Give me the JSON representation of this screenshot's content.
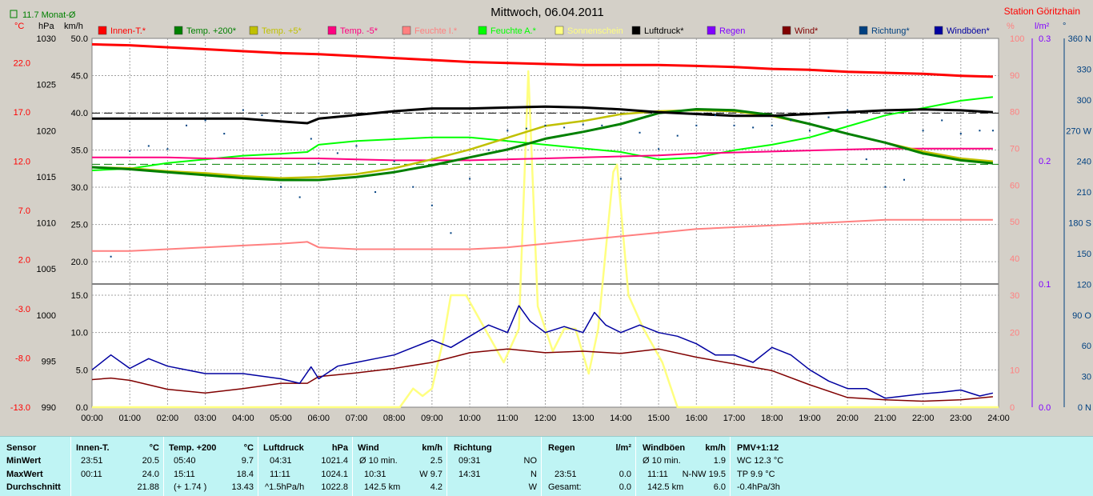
{
  "header": {
    "title": "Mittwoch, 06.04.2011",
    "station": "Station Göritzhain",
    "monthly_avg": "11.7 Monat-Ø",
    "unit_c": "°C",
    "unit_hpa": "hPa",
    "unit_kmh": "km/h",
    "unit_pct": "%",
    "unit_lm2": "l/m²",
    "unit_deg": "°"
  },
  "colors": {
    "innen": "#ff0000",
    "temp200": "#008000",
    "temp5": "#c0c000",
    "tempm5": "#ff0080",
    "feuchteI": "#ff8080",
    "feuchteA": "#00ff00",
    "sonne": "#ffff80",
    "luftdruck": "#000000",
    "regen": "#8000ff",
    "wind": "#800000",
    "richtung": "#004080",
    "windboeen": "#0000a0",
    "pct": "#ff8080",
    "rain_axis": "#8000ff",
    "dir_axis": "#004080"
  },
  "legend": [
    {
      "label": "Innen-T.*",
      "color": "#ff0000"
    },
    {
      "label": "Temp. +200*",
      "color": "#008000"
    },
    {
      "label": "Temp. +5*",
      "color": "#c0c000"
    },
    {
      "label": "Temp. -5*",
      "color": "#ff0080"
    },
    {
      "label": "Feuchte I.*",
      "color": "#ff8080"
    },
    {
      "label": "Feuchte A.*",
      "color": "#00ff00"
    },
    {
      "label": "Sonnenschein",
      "color": "#ffff80"
    },
    {
      "label": "Luftdruck*",
      "color": "#000000"
    },
    {
      "label": "Regen",
      "color": "#8000ff"
    },
    {
      "label": "Wind*",
      "color": "#800000"
    },
    {
      "label": "Richtung*",
      "color": "#004080"
    },
    {
      "label": "Windböen*",
      "color": "#0000a0"
    }
  ],
  "chart_data": {
    "type": "line",
    "title": "Mittwoch, 06.04.2011",
    "x_ticks": [
      "00:00",
      "01:00",
      "02:00",
      "03:00",
      "04:00",
      "05:00",
      "06:00",
      "07:00",
      "08:00",
      "09:00",
      "10:00",
      "11:00",
      "12:00",
      "13:00",
      "14:00",
      "15:00",
      "16:00",
      "17:00",
      "18:00",
      "19:00",
      "20:00",
      "21:00",
      "22:00",
      "23:00",
      "24:00"
    ],
    "axes": {
      "celsius": {
        "ticks": [
          "22.0",
          "17.0",
          "12.0",
          "7.0",
          "2.0",
          "-3.0",
          "-8.0",
          "-13.0"
        ],
        "range": [
          -13,
          24.5
        ]
      },
      "hpa": {
        "ticks": [
          "1030",
          "1025",
          "1020",
          "1015",
          "1010",
          "1005",
          "1000",
          "995",
          "990"
        ],
        "range": [
          990,
          1030
        ]
      },
      "kmh_upper": {
        "ticks": [
          "50.0",
          "45.0",
          "40.0",
          "35.0",
          "30.0",
          "25.0",
          "20.0"
        ],
        "range": [
          17,
          50
        ]
      },
      "kmh_lower": {
        "ticks": [
          "15.0",
          "10.0",
          "5.0",
          "0.0"
        ],
        "range": [
          0,
          16.5
        ]
      },
      "percent_upper": {
        "ticks": [
          "100",
          "90",
          "80",
          "70",
          "60",
          "50",
          "40"
        ],
        "range": [
          33,
          100
        ]
      },
      "percent_lower": {
        "ticks": [
          "30",
          "20",
          "10",
          "0"
        ],
        "range": [
          0,
          33
        ]
      },
      "rain": {
        "ticks": [
          "0.3",
          "0.2",
          "0.1",
          "0.0"
        ],
        "range": [
          0,
          0.3
        ]
      },
      "direction": {
        "ticks": [
          "360 N",
          "330",
          "300",
          "270 W",
          "240",
          "210",
          "180 S",
          "150",
          "120",
          "90 O",
          "60",
          "30",
          "0 N"
        ],
        "range": [
          0,
          360
        ]
      }
    },
    "reference_lines": {
      "luftdruck_dashed": 1021.9,
      "monthly_avg_c": 11.7
    },
    "series": [
      {
        "name": "Innen-T.*",
        "axis": "celsius",
        "x": [
          0,
          1,
          2,
          3,
          4,
          5,
          6,
          7,
          8,
          9,
          10,
          11,
          12,
          13,
          14,
          15,
          16,
          17,
          18,
          19,
          20,
          21,
          22,
          23,
          23.85
        ],
        "values": [
          23.9,
          23.8,
          23.6,
          23.4,
          23.2,
          23.0,
          22.9,
          22.7,
          22.5,
          22.3,
          22.1,
          22.0,
          21.9,
          21.8,
          21.8,
          21.8,
          21.7,
          21.6,
          21.4,
          21.3,
          21.1,
          21.0,
          20.9,
          20.7,
          20.6
        ]
      },
      {
        "name": "Temp. +200*",
        "axis": "celsius",
        "x": [
          0,
          1,
          2,
          3,
          4,
          5,
          6,
          7,
          8,
          9,
          10,
          11,
          12,
          13,
          14,
          15,
          16,
          17,
          18,
          19,
          20,
          21,
          22,
          23,
          23.85
        ],
        "values": [
          11.4,
          11.2,
          10.9,
          10.6,
          10.3,
          10.1,
          10.1,
          10.4,
          10.9,
          11.6,
          12.4,
          13.2,
          14.3,
          15.0,
          15.8,
          16.9,
          17.3,
          17.2,
          16.7,
          15.8,
          14.8,
          13.9,
          12.8,
          12.1,
          11.8
        ]
      },
      {
        "name": "Temp. +5*",
        "axis": "celsius",
        "x": [
          0,
          1,
          2,
          3,
          4,
          5,
          6,
          7,
          8,
          9,
          10,
          11,
          12,
          13,
          14,
          15,
          16,
          17,
          18,
          19,
          20,
          21,
          22,
          23,
          23.85
        ],
        "values": [
          11.4,
          11.3,
          11.0,
          10.8,
          10.5,
          10.3,
          10.4,
          10.7,
          11.3,
          12.2,
          13.2,
          14.4,
          15.6,
          16.1,
          16.8,
          17.1,
          17.2,
          17.1,
          16.6,
          15.8,
          14.8,
          13.9,
          13.0,
          12.3,
          12.0
        ]
      },
      {
        "name": "Temp. -5*",
        "axis": "celsius",
        "x": [
          0,
          1,
          2,
          3,
          4,
          5,
          6,
          7,
          8,
          9,
          10,
          11,
          12,
          13,
          14,
          15,
          16,
          17,
          18,
          19,
          20,
          21,
          22,
          23,
          23.85
        ],
        "values": [
          12.4,
          12.4,
          12.4,
          12.3,
          12.3,
          12.3,
          12.3,
          12.2,
          12.1,
          12.1,
          12.1,
          12.2,
          12.3,
          12.4,
          12.5,
          12.6,
          12.8,
          12.9,
          13.0,
          13.1,
          13.2,
          13.3,
          13.3,
          13.3,
          13.3
        ]
      },
      {
        "name": "Feuchte I.*",
        "axis": "percent_upper",
        "x": [
          0,
          1,
          2,
          3,
          4,
          5,
          5.7,
          6,
          7,
          8,
          9,
          10,
          11,
          12,
          13,
          14,
          15,
          16,
          17,
          18,
          19,
          20,
          21,
          22,
          23,
          23.85
        ],
        "values": [
          42,
          42,
          42.5,
          43,
          43.5,
          44,
          44.5,
          43,
          42.5,
          42.5,
          42.5,
          42.5,
          43,
          44,
          45,
          46,
          47,
          48,
          48.5,
          49,
          49.5,
          50,
          50.5,
          50.5,
          50.5,
          50.5
        ]
      },
      {
        "name": "Feuchte A.*",
        "axis": "percent_upper",
        "x": [
          0,
          1,
          2,
          3,
          4,
          5,
          5.7,
          6,
          7,
          8,
          9,
          10,
          11,
          12,
          13,
          14,
          15,
          16,
          17,
          18,
          19,
          20,
          21,
          22,
          23,
          23.85
        ],
        "values": [
          64,
          64.5,
          66,
          67,
          68,
          68.5,
          69,
          71,
          72,
          72.5,
          73,
          73,
          72,
          71,
          70,
          69,
          67,
          67.5,
          69.5,
          71,
          73,
          76,
          79,
          81,
          83,
          84
        ]
      },
      {
        "name": "Sonnenschein",
        "axis": "percent_lower",
        "x": [
          0,
          8.15,
          8.5,
          8.75,
          9.0,
          9.3,
          9.5,
          9.9,
          10.4,
          10.9,
          11.3,
          11.55,
          11.8,
          12.2,
          12.5,
          12.8,
          13.15,
          13.4,
          13.8,
          13.9,
          14.2,
          14.6,
          15.1,
          15.5,
          24
        ],
        "values": [
          0,
          0,
          5,
          3,
          5,
          18,
          30,
          30,
          21,
          12,
          21,
          90,
          27,
          15,
          21,
          21,
          9,
          21,
          63,
          65,
          30,
          21,
          12,
          0,
          0
        ]
      },
      {
        "name": "Luftdruck*",
        "axis": "hpa",
        "x": [
          0,
          1,
          2,
          3,
          4,
          5,
          5.7,
          6,
          7,
          8,
          9,
          10,
          11,
          12,
          13,
          14,
          15,
          16,
          17,
          18,
          19,
          20,
          21,
          22,
          23,
          23.85
        ],
        "values": [
          1021.3,
          1021.3,
          1021.3,
          1021.3,
          1021.3,
          1021.0,
          1020.8,
          1021.3,
          1021.7,
          1022.1,
          1022.4,
          1022.4,
          1022.5,
          1022.6,
          1022.5,
          1022.3,
          1022.0,
          1021.8,
          1021.6,
          1021.6,
          1021.8,
          1022.0,
          1022.2,
          1022.3,
          1022.2,
          1022.0
        ]
      },
      {
        "name": "Wind*",
        "axis": "kmh_lower",
        "x": [
          0,
          0.5,
          1,
          2,
          3,
          4,
          5,
          5.7,
          6,
          7,
          8,
          9,
          10,
          11,
          12,
          13,
          14,
          15,
          16,
          17,
          18,
          19,
          20,
          21,
          22,
          23,
          23.85
        ],
        "values": [
          3.7,
          3.9,
          3.6,
          2.4,
          1.9,
          2.5,
          3.2,
          3.2,
          4.1,
          4.6,
          5.2,
          6.0,
          7.3,
          7.8,
          7.3,
          7.5,
          7.2,
          7.8,
          6.7,
          5.8,
          4.9,
          3.0,
          1.3,
          1.0,
          0.8,
          1.0,
          1.4
        ]
      },
      {
        "name": "Windböen*",
        "axis": "kmh_lower",
        "x": [
          0,
          0.5,
          1,
          1.5,
          2,
          3,
          4,
          5,
          5.5,
          5.8,
          6,
          6.5,
          7,
          7.5,
          8,
          8.5,
          9,
          9.5,
          10,
          10.5,
          11,
          11.3,
          11.6,
          12,
          12.5,
          13,
          13.3,
          13.6,
          14,
          14.5,
          15,
          15.5,
          16,
          16.5,
          17,
          17.5,
          18,
          18.5,
          19,
          19.5,
          20,
          20.5,
          21,
          21.5,
          22,
          22.5,
          23,
          23.5,
          23.85
        ],
        "values": [
          5.0,
          7.0,
          5.2,
          6.5,
          5.5,
          4.5,
          4.5,
          3.8,
          3.2,
          5.4,
          3.8,
          5.5,
          6.0,
          6.5,
          7.0,
          8.0,
          9.0,
          8.0,
          9.5,
          11.0,
          10.0,
          13.6,
          11.5,
          10.0,
          10.8,
          10.0,
          12.7,
          11.0,
          10.0,
          11.0,
          10.0,
          9.5,
          8.5,
          7.0,
          7.0,
          6.0,
          8.0,
          7.0,
          5.0,
          3.5,
          2.5,
          2.5,
          1.2,
          1.5,
          1.8,
          2.0,
          2.3,
          1.5,
          1.9
        ]
      },
      {
        "name": "Richtung*",
        "axis": "direction",
        "type": "scatter",
        "x": [
          0.5,
          1,
          1.5,
          2,
          2.5,
          3,
          3.5,
          4,
          4.5,
          5,
          5.5,
          5.8,
          6,
          6.5,
          7,
          7.5,
          8,
          8.5,
          9,
          9.5,
          10,
          10.5,
          11,
          11.5,
          12,
          12.5,
          13,
          13.5,
          14,
          14.5,
          15,
          15.5,
          16,
          16.5,
          17,
          17.5,
          18,
          18.5,
          19,
          19.5,
          20,
          20.5,
          21,
          21.5,
          22,
          22.5,
          23,
          23.5,
          23.85
        ],
        "values": [
          147,
          250,
          255,
          252,
          275,
          280,
          267,
          290,
          285,
          215,
          205,
          262,
          238,
          248,
          255,
          210,
          240,
          215,
          197,
          170,
          223,
          251,
          270,
          272,
          275,
          273,
          276,
          275,
          223,
          268,
          252,
          265,
          275,
          285,
          275,
          273,
          275,
          280,
          270,
          283,
          290,
          242,
          215,
          222,
          270,
          280,
          267,
          270,
          270
        ]
      }
    ]
  },
  "stats": {
    "labels": {
      "sensor": "Sensor",
      "min": "MinWert",
      "max": "MaxWert",
      "avg": "Durchschnitt"
    },
    "innen": {
      "title": "Innen-T.",
      "unit": "°C",
      "min_time": "23:51",
      "min_val": "20.5",
      "max_time": "00:11",
      "max_val": "24.0",
      "avg_val": "21.88"
    },
    "temp": {
      "title": "Temp. +200",
      "unit": "°C",
      "min_time": "05:40",
      "min_val": "9.7",
      "max_time": "15:11",
      "max_val": "18.4",
      "avg_extra": "(+ 1.74 )",
      "avg_val": "13.43"
    },
    "luft": {
      "title": "Luftdruck",
      "unit": "hPa",
      "min_time": "04:31",
      "min_val": "1021.4",
      "max_time": "11:11",
      "max_val": "1024.1",
      "avg_extra": "^1.5hPa/h",
      "avg_val": "1022.8"
    },
    "wind": {
      "title": "Wind",
      "unit": "km/h",
      "min_time": "Ø 10 min.",
      "min_val": "2.5",
      "max_time": "10:31",
      "max_dir": "W 9.7",
      "avg_extra": "142.5 km",
      "avg_val": "4.2"
    },
    "richtung": {
      "title": "Richtung",
      "unit": "",
      "min_time": "09:31",
      "min_val": "NO",
      "max_time": "14:31",
      "max_val": "N",
      "avg_val": "W"
    },
    "regen": {
      "title": "Regen",
      "unit": "l/m²",
      "max_time": "23:51",
      "max_val": "0.0",
      "avg_extra": "Gesamt:",
      "avg_val": "0.0"
    },
    "boeen": {
      "title": "Windböen",
      "unit": "km/h",
      "min_time": "Ø 10 min.",
      "min_val": "1.9",
      "max_time": "11:11",
      "max_dir": "N-NW 19.5",
      "avg_extra": "142.5 km",
      "avg_val": "6.0"
    },
    "pmv": {
      "title": "PMV+1:12",
      "min_val": "WC 12.3 °C",
      "max_val": "TP 9.9 °C",
      "avg_val": "-0.4hPa/3h"
    }
  }
}
